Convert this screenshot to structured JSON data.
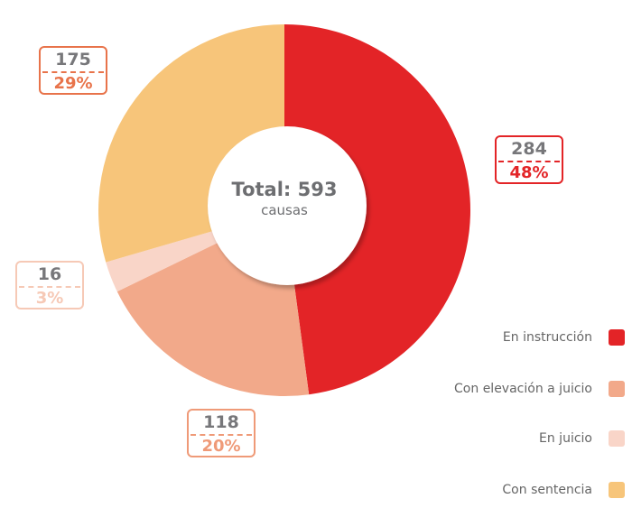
{
  "chart_data": {
    "type": "pie",
    "donut": true,
    "center_label": {
      "total": "Total: 593",
      "unit": "causas"
    },
    "categories": [
      "En instrucción",
      "Con elevación a juicio",
      "En juicio",
      "Con sentencia"
    ],
    "values": [
      284,
      118,
      16,
      175
    ],
    "percent_labels": [
      "48%",
      "20%",
      "3%",
      "29%"
    ],
    "value_labels": [
      "284",
      "118",
      "16",
      "175"
    ],
    "colors": [
      "#e32427",
      "#f2a98a",
      "#f9d5c8",
      "#f7c57a"
    ],
    "callout_colors": [
      "#e32427",
      "#ef9a78",
      "#f6c9b6",
      "#e8734a"
    ],
    "legend_position": "bottom-right"
  }
}
